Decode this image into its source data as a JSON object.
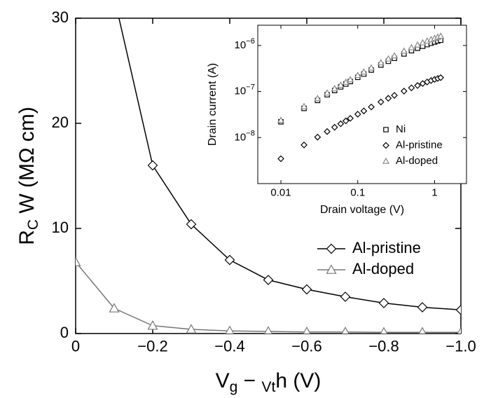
{
  "chart_data": [
    {
      "type": "line",
      "x_label": "Vg − Vth (V)",
      "y_label": "RC W (MΩ cm)",
      "x": [
        0,
        -0.1,
        -0.2,
        -0.3,
        -0.4,
        -0.5,
        -0.6,
        -0.7,
        -0.8,
        -0.9,
        -1.0
      ],
      "xlim": [
        0,
        -1.0
      ],
      "xticks": [
        0,
        {
          "value": -0.2,
          "label": "−0.2"
        },
        {
          "value": -0.4,
          "label": "−0.4"
        },
        {
          "value": -0.6,
          "label": "−0.6"
        },
        {
          "value": -0.8,
          "label": "−0.8"
        },
        {
          "value": -1.0,
          "label": "−1.0"
        }
      ],
      "ylim": [
        0,
        30
      ],
      "yticks": [
        0,
        10,
        20,
        30
      ],
      "legend": "center right",
      "series": [
        {
          "name": "Al-pristine",
          "color": "#000000",
          "marker": "diamond",
          "values": [
            null,
            32,
            16,
            10.4,
            7.0,
            5.1,
            4.2,
            3.5,
            2.9,
            2.5,
            2.25
          ]
        },
        {
          "name": "Al-doped",
          "color": "#777777",
          "marker": "triangle",
          "values": [
            6.8,
            2.4,
            0.75,
            0.4,
            0.25,
            0.2,
            0.15,
            0.15,
            0.12,
            0.12,
            0.12
          ]
        }
      ]
    },
    {
      "type": "scatter",
      "x_label": "Drain voltage (V)",
      "y_label": "Drain current (A)",
      "xlog": true,
      "ylog": true,
      "x": [
        0.01,
        0.02,
        0.03,
        0.04,
        0.05,
        0.06,
        0.07,
        0.08,
        0.1,
        0.12,
        0.15,
        0.2,
        0.25,
        0.3,
        0.4,
        0.5,
        0.6,
        0.7,
        0.8,
        0.9,
        1.0,
        1.1,
        1.2
      ],
      "xlim": [
        0.005,
        2.6
      ],
      "xticks": [
        0.01,
        0.1,
        1
      ],
      "ylim": [
        1e-09,
        2.75e-06
      ],
      "yticks": [
        {
          "value": 1e-08,
          "label": "10−8"
        },
        {
          "value": 1e-07,
          "label": "10−7"
        },
        {
          "value": 1e-06,
          "label": "10−6"
        }
      ],
      "legend": "lower right",
      "series": [
        {
          "name": "Ni",
          "color": "#000000",
          "marker": "square",
          "values": [
            2.2e-08,
            4.3e-08,
            6.4e-08,
            8.5e-08,
            1.05e-07,
            1.26e-07,
            1.45e-07,
            1.65e-07,
            2.03e-07,
            2.39e-07,
            2.93e-07,
            3.76e-07,
            4.53e-07,
            5.25e-07,
            6.56e-07,
            7.71e-07,
            8.72e-07,
            9.64e-07,
            1.045e-06,
            1.12e-06,
            1.19e-06,
            1.25e-06,
            1.3e-06
          ]
        },
        {
          "name": "Al-pristine",
          "color": "#000000",
          "marker": "diamond",
          "values": [
            3.47e-09,
            6.9e-09,
            1.02e-08,
            1.35e-08,
            1.67e-08,
            1.99e-08,
            2.3e-08,
            2.61e-08,
            3.21e-08,
            3.78e-08,
            4.61e-08,
            5.92e-08,
            7.12e-08,
            8.24e-08,
            1.02e-07,
            1.2e-07,
            1.35e-07,
            1.49e-07,
            1.61e-07,
            1.73e-07,
            1.83e-07,
            1.92e-07,
            2e-07
          ]
        },
        {
          "name": "Al-doped",
          "color": "#888888",
          "marker": "triangle",
          "values": [
            2.38e-08,
            4.74e-08,
            7.06e-08,
            9.35e-08,
            1.16e-07,
            1.38e-07,
            1.6e-07,
            1.82e-07,
            2.25e-07,
            2.67e-07,
            3.27e-07,
            4.24e-07,
            5.14e-07,
            6e-07,
            7.58e-07,
            9e-07,
            1.03e-06,
            1.15e-06,
            1.25e-06,
            1.35e-06,
            1.44e-06,
            1.52e-06,
            1.6e-06
          ]
        }
      ]
    }
  ]
}
